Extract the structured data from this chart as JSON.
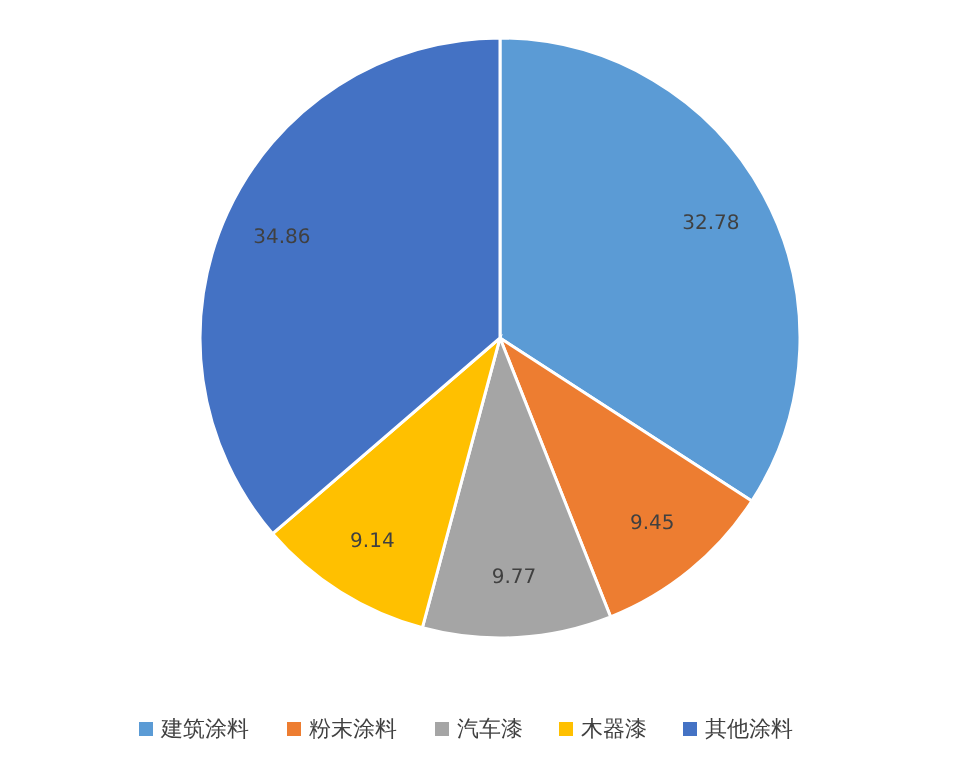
{
  "chart_data": {
    "type": "pie",
    "categories": [
      "建筑涂料",
      "粉末涂料",
      "汽车漆",
      "木器漆",
      "其他涂料"
    ],
    "values": [
      32.78,
      9.45,
      9.77,
      9.14,
      34.86
    ],
    "colors": [
      "#5b9bd5",
      "#ed7d31",
      "#a5a5a5",
      "#ffc000",
      "#4472c4"
    ],
    "data_labels": true,
    "legend": "bottom"
  }
}
